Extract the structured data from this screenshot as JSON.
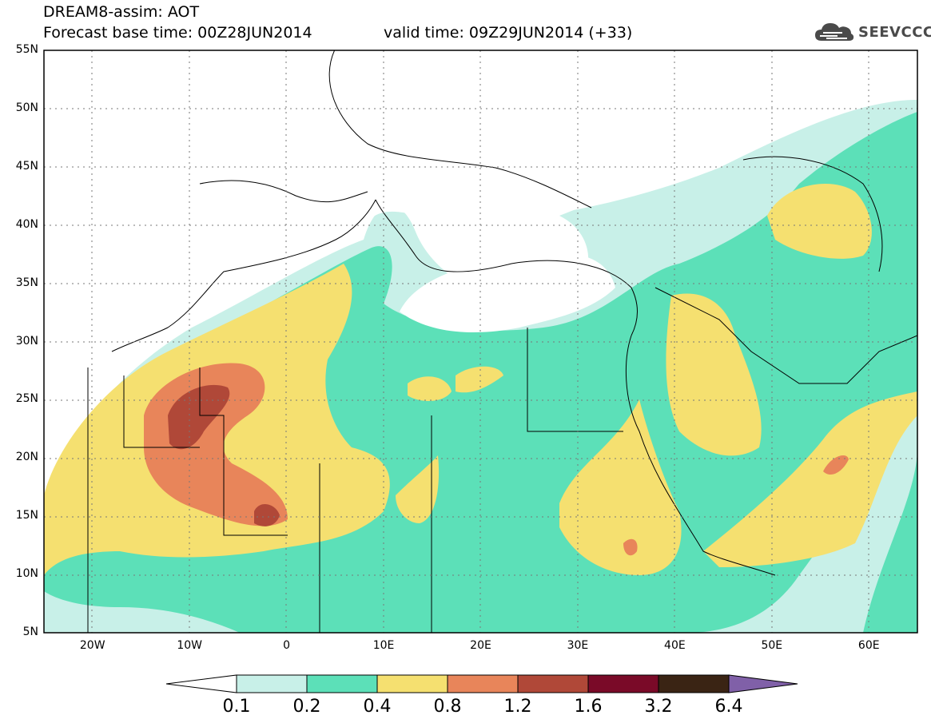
{
  "header": {
    "title": "DREAM8-assim: AOT",
    "base_time": "Forecast base time: 00Z28JUN2014",
    "valid_time": "valid time: 09Z29JUN2014 (+33)"
  },
  "logo": {
    "text": "SEEVCCC",
    "icon": "cloud-icon",
    "color": "#4a4a4a"
  },
  "map": {
    "projection": "lat-lon",
    "lon_range": [
      -25,
      65
    ],
    "lat_range": [
      5,
      55
    ],
    "lat_ticks": [
      {
        "value": 55,
        "label": "55N"
      },
      {
        "value": 50,
        "label": "50N"
      },
      {
        "value": 45,
        "label": "45N"
      },
      {
        "value": 40,
        "label": "40N"
      },
      {
        "value": 35,
        "label": "35N"
      },
      {
        "value": 30,
        "label": "30N"
      },
      {
        "value": 25,
        "label": "25N"
      },
      {
        "value": 20,
        "label": "20N"
      },
      {
        "value": 15,
        "label": "15N"
      },
      {
        "value": 10,
        "label": "10N"
      },
      {
        "value": 5,
        "label": "5N"
      }
    ],
    "lon_ticks": [
      {
        "value": -20,
        "label": "20W"
      },
      {
        "value": -10,
        "label": "10W"
      },
      {
        "value": 0,
        "label": "0"
      },
      {
        "value": 10,
        "label": "10E"
      },
      {
        "value": 20,
        "label": "20E"
      },
      {
        "value": 30,
        "label": "30E"
      },
      {
        "value": 40,
        "label": "40E"
      },
      {
        "value": 50,
        "label": "50E"
      },
      {
        "value": 60,
        "label": "60E"
      }
    ],
    "grid": true
  },
  "colorbar": {
    "levels": [
      "0.1",
      "0.2",
      "0.4",
      "0.8",
      "1.2",
      "1.6",
      "3.2",
      "6.4"
    ],
    "colors": [
      "#ffffff",
      "#c8f0e8",
      "#5ce0b8",
      "#f5e070",
      "#e8855a",
      "#b04838",
      "#7a0a28",
      "#3a2414",
      "#8060a8"
    ]
  }
}
